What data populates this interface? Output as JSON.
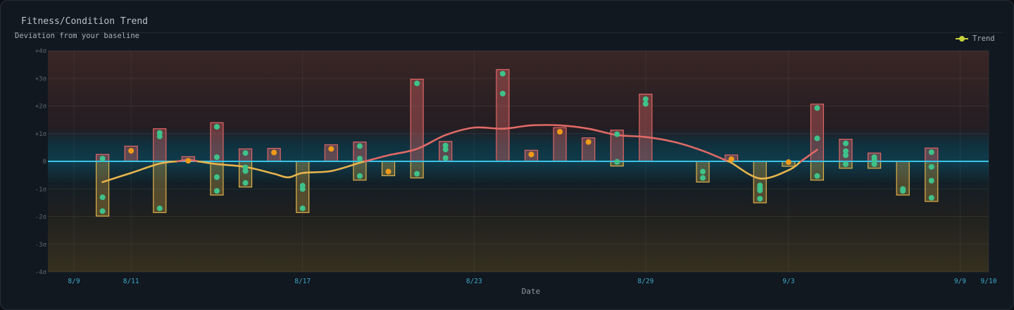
{
  "header": {
    "title": "Fitness/Condition Trend",
    "subtitle": "Deviation from your baseline"
  },
  "legend": {
    "trend_label": "Trend",
    "trend_icon": "yellow-dot-line-icon"
  },
  "colors": {
    "positive": "#e06666",
    "negative": "#e0b24a",
    "dot": "#3ec28a",
    "dot_single": "#f09a1a",
    "baseline": "#3ac3e6",
    "trend_up": "#e06a66",
    "trend_down": "#e8b44c",
    "legend_dot": "#c8d23c"
  },
  "chart_data": {
    "type": "bar",
    "xlabel": "Date",
    "ylabel": "",
    "x_range": [
      "2024-08-09",
      "2024-09-10"
    ],
    "ylim": [
      -4,
      4
    ],
    "y_ticks": [
      "+4σ",
      "+3σ",
      "+2σ",
      "+1σ",
      "0",
      "-1σ",
      "-2σ",
      "-3σ",
      "-4σ"
    ],
    "x_ticks": [
      "8/9",
      "8/11",
      "8/17",
      "8/23",
      "8/29",
      "9/3",
      "9/9",
      "9/10"
    ],
    "grid": true,
    "baseline": 0,
    "legend_position": "top-right",
    "days": [
      {
        "date": "2024-08-10",
        "high": 0.25,
        "low": -1.98,
        "points": [
          0.1,
          -1.3,
          -1.8
        ]
      },
      {
        "date": "2024-08-11",
        "high": 0.55,
        "low": 0,
        "points": [
          0.38
        ]
      },
      {
        "date": "2024-08-12",
        "high": 1.18,
        "low": -1.85,
        "points": [
          1.03,
          0.9,
          -1.7
        ]
      },
      {
        "date": "2024-08-13",
        "high": 0.17,
        "low": 0,
        "points": [
          0.02
        ]
      },
      {
        "date": "2024-08-14",
        "high": 1.4,
        "low": -1.22,
        "points": [
          1.25,
          0.15,
          -0.57,
          -1.07
        ]
      },
      {
        "date": "2024-08-15",
        "high": 0.45,
        "low": -0.93,
        "points": [
          0.3,
          -0.22,
          -0.35,
          -0.78
        ]
      },
      {
        "date": "2024-08-16",
        "high": 0.47,
        "low": 0,
        "points": [
          0.32
        ]
      },
      {
        "date": "2024-08-17",
        "high": 0,
        "low": -1.85,
        "points": [
          -0.88,
          -1.0,
          -1.7
        ]
      },
      {
        "date": "2024-08-18",
        "high": 0.6,
        "low": 0,
        "points": [
          0.45
        ]
      },
      {
        "date": "2024-08-19",
        "high": 0.7,
        "low": -0.68,
        "points": [
          0.55,
          0.1,
          -0.53
        ]
      },
      {
        "date": "2024-08-20",
        "high": 0,
        "low": -0.52,
        "points": [
          -0.37
        ]
      },
      {
        "date": "2024-08-21",
        "high": 2.97,
        "low": -0.6,
        "points": [
          2.82,
          -0.45
        ]
      },
      {
        "date": "2024-08-22",
        "high": 0.72,
        "low": 0,
        "points": [
          0.57,
          0.43,
          0.12
        ]
      },
      {
        "date": "2024-08-24",
        "high": 3.32,
        "low": 0,
        "points": [
          3.17,
          2.45
        ]
      },
      {
        "date": "2024-08-25",
        "high": 0.4,
        "low": 0,
        "points": [
          0.25
        ]
      },
      {
        "date": "2024-08-26",
        "high": 1.22,
        "low": 0,
        "points": [
          1.07
        ]
      },
      {
        "date": "2024-08-27",
        "high": 0.85,
        "low": 0,
        "points": [
          0.7
        ]
      },
      {
        "date": "2024-08-28",
        "high": 1.13,
        "low": -0.17,
        "points": [
          0.98,
          -0.02
        ]
      },
      {
        "date": "2024-08-29",
        "high": 2.43,
        "low": 0,
        "points": [
          2.25,
          2.08
        ]
      },
      {
        "date": "2024-08-31",
        "high": 0,
        "low": -0.75,
        "points": [
          -0.37,
          -0.6
        ]
      },
      {
        "date": "2024-09-01",
        "high": 0.23,
        "low": 0,
        "points": [
          0.08
        ]
      },
      {
        "date": "2024-09-02",
        "high": 0,
        "low": -1.5,
        "points": [
          -0.87,
          -0.97,
          -1.05,
          -1.35
        ]
      },
      {
        "date": "2024-09-03",
        "high": 0,
        "low": -0.18,
        "points": [
          -0.03
        ]
      },
      {
        "date": "2024-09-04",
        "high": 2.07,
        "low": -0.68,
        "points": [
          1.93,
          0.83,
          -0.53
        ]
      },
      {
        "date": "2024-09-05",
        "high": 0.8,
        "low": -0.25,
        "points": [
          0.65,
          0.37,
          0.22,
          -0.1
        ]
      },
      {
        "date": "2024-09-06",
        "high": 0.3,
        "low": -0.25,
        "points": [
          0.15,
          0.05,
          -0.1
        ]
      },
      {
        "date": "2024-09-07",
        "high": 0,
        "low": -1.22,
        "points": [
          -1.0,
          -1.07
        ]
      },
      {
        "date": "2024-09-08",
        "high": 0.48,
        "low": -1.45,
        "points": [
          0.33,
          -0.2,
          -0.7,
          -1.32
        ]
      }
    ],
    "trend": {
      "name": "Trend",
      "x": [
        "2024-08-10",
        "2024-08-11",
        "2024-08-12",
        "2024-08-13",
        "2024-08-14",
        "2024-08-15",
        "2024-08-16",
        "2024-08-16T12:00",
        "2024-08-17",
        "2024-08-18",
        "2024-08-19",
        "2024-08-20",
        "2024-08-21",
        "2024-08-22",
        "2024-08-23",
        "2024-08-24",
        "2024-08-25",
        "2024-08-26",
        "2024-08-27",
        "2024-08-28",
        "2024-08-29",
        "2024-08-30",
        "2024-08-31",
        "2024-09-01",
        "2024-09-02",
        "2024-09-03",
        "2024-09-03T12:00",
        "2024-09-04"
      ],
      "y": [
        -0.75,
        -0.42,
        -0.08,
        0.05,
        -0.1,
        -0.2,
        -0.45,
        -0.58,
        -0.42,
        -0.35,
        -0.05,
        0.22,
        0.45,
        0.95,
        1.22,
        1.18,
        1.3,
        1.3,
        1.18,
        0.95,
        0.88,
        0.7,
        0.38,
        -0.05,
        -0.62,
        -0.32,
        0.05,
        0.42
      ]
    }
  }
}
